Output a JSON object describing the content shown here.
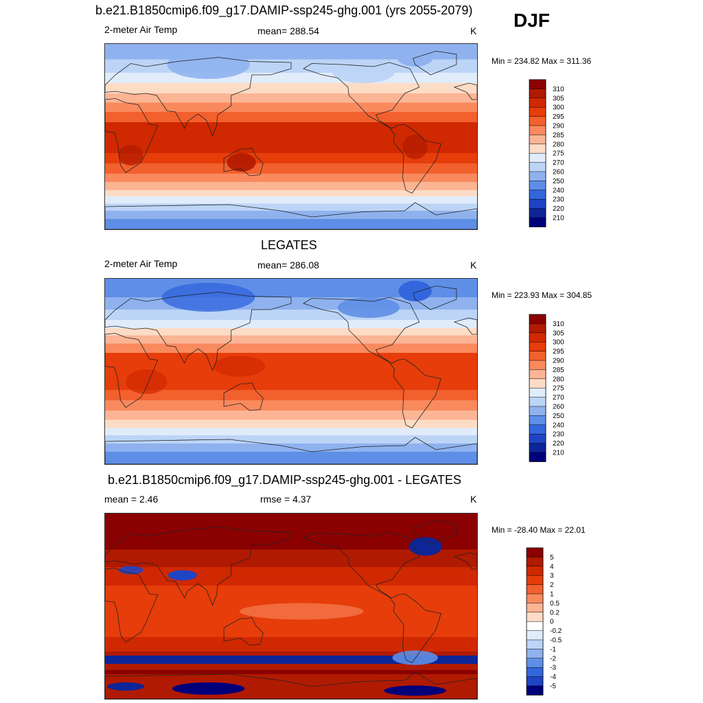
{
  "season": "DJF",
  "panels": [
    {
      "title": "b.e21.B1850cmip6.f09_g17.DAMIP-ssp245-ghg.001 (yrs 2055-2079)",
      "left_label": "2-meter Air Temp",
      "center_label": "mean= 288.54",
      "units": "K",
      "minmax": "Min = 234.82 Max = 311.36",
      "map_name": "model-temperature-map",
      "palette": "temp",
      "colorbar": {
        "labels": [
          "310",
          "305",
          "300",
          "295",
          "290",
          "285",
          "280",
          "275",
          "270",
          "260",
          "250",
          "240",
          "230",
          "220",
          "210"
        ],
        "colors": [
          "#8b0000",
          "#b01a00",
          "#d02800",
          "#e63d0a",
          "#f2602e",
          "#f98a5e",
          "#fbb595",
          "#fddcc6",
          "#e1ecfb",
          "#bcd4f6",
          "#8fb2ef",
          "#5e8ee6",
          "#3366dd",
          "#1f44c4",
          "#0d2597",
          "#00007a"
        ]
      }
    },
    {
      "title": "LEGATES",
      "left_label": "2-meter Air Temp",
      "center_label": "mean= 286.08",
      "units": "K",
      "minmax": "Min = 223.93 Max = 304.85",
      "map_name": "legates-temperature-map",
      "palette": "temp",
      "colorbar": {
        "labels": [
          "310",
          "305",
          "300",
          "295",
          "290",
          "285",
          "280",
          "275",
          "270",
          "260",
          "250",
          "240",
          "230",
          "220",
          "210"
        ],
        "colors": [
          "#8b0000",
          "#b01a00",
          "#d02800",
          "#e63d0a",
          "#f2602e",
          "#f98a5e",
          "#fbb595",
          "#fddcc6",
          "#e1ecfb",
          "#bcd4f6",
          "#8fb2ef",
          "#5e8ee6",
          "#3366dd",
          "#1f44c4",
          "#0d2597",
          "#00007a"
        ]
      }
    },
    {
      "title": "b.e21.B1850cmip6.f09_g17.DAMIP-ssp245-ghg.001 - LEGATES",
      "left_label": "mean =   2.46",
      "center_label": "rmse =   4.37",
      "units": "K",
      "minmax": "Min = -28.40 Max =  22.01",
      "map_name": "difference-map",
      "palette": "diff",
      "colorbar": {
        "labels": [
          "5",
          "4",
          "3",
          "2",
          "1",
          "0.5",
          "0.2",
          "0",
          "-0.2",
          "-0.5",
          "-1",
          "-2",
          "-3",
          "-4",
          "-5"
        ],
        "colors": [
          "#8b0000",
          "#b01a00",
          "#d02800",
          "#e63d0a",
          "#f2602e",
          "#f98a5e",
          "#fbb595",
          "#fddcc6",
          "#ffffff",
          "#e1ecfb",
          "#bcd4f6",
          "#8fb2ef",
          "#5e8ee6",
          "#3366dd",
          "#1f44c4",
          "#00007a"
        ]
      }
    }
  ]
}
